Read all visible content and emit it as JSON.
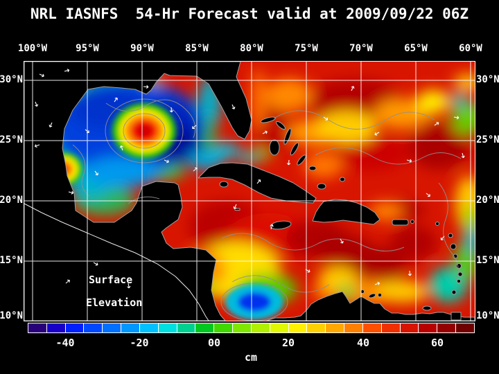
{
  "title": "NRL IASNFS  54-Hr Forecast valid at 2009/09/22 06Z",
  "axes": {
    "lon_ticks": [
      "100°W",
      "95°W",
      "90°W",
      "85°W",
      "80°W",
      "75°W",
      "70°W",
      "65°W",
      "60°W"
    ],
    "lat_ticks": [
      "30°N",
      "25°N",
      "20°N",
      "15°N",
      "10°N"
    ]
  },
  "map": {
    "label_line1": "Surface",
    "label_line2": "Elevation"
  },
  "colorbar": {
    "unit": "cm",
    "tick_labels": [
      "-40",
      "-20",
      "00",
      "20",
      "40",
      "60"
    ],
    "colors": [
      "#28007a",
      "#1800c8",
      "#0020ff",
      "#0048ff",
      "#0070ff",
      "#0098ff",
      "#00c0ff",
      "#00e0e0",
      "#00d090",
      "#00c820",
      "#40d800",
      "#80e800",
      "#b0f000",
      "#e0f800",
      "#fff000",
      "#ffd000",
      "#ffa800",
      "#ff8000",
      "#ff5000",
      "#f03000",
      "#d81400",
      "#b80000",
      "#940000",
      "#700000"
    ]
  },
  "chart_data": {
    "type": "heatmap",
    "title": "NRL IASNFS 54-Hr Forecast valid at 2009/09/22 06Z",
    "variable": "Surface Elevation",
    "units": "cm",
    "x_ticks": [
      "100°W",
      "95°W",
      "90°W",
      "85°W",
      "80°W",
      "75°W",
      "70°W",
      "65°W",
      "60°W"
    ],
    "y_ticks": [
      "30°N",
      "25°N",
      "20°N",
      "15°N",
      "10°N"
    ],
    "colorbar_tick_labels": [
      -40,
      -20,
      0,
      20,
      40,
      60
    ],
    "colorbar_segments": 24,
    "legend_position": "bottom"
  }
}
